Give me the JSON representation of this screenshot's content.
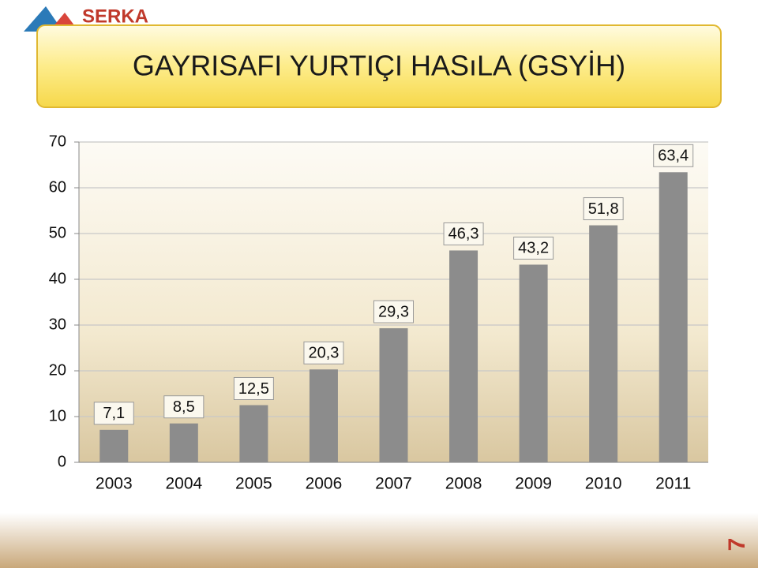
{
  "logo": "SERKA",
  "page_number": "7",
  "chart_data": {
    "type": "bar",
    "title": "GAYRISAFI YURTIÇI HASıLA (GSYİH)",
    "categories": [
      "2003",
      "2004",
      "2005",
      "2006",
      "2007",
      "2008",
      "2009",
      "2010",
      "2011"
    ],
    "values": [
      7.1,
      8.5,
      12.5,
      20.3,
      29.3,
      46.3,
      43.2,
      51.8,
      63.4
    ],
    "value_labels": [
      "7,1",
      "8,5",
      "12,5",
      "20,3",
      "29,3",
      "46,3",
      "43,2",
      "51,8",
      "63,4"
    ],
    "color": "#8c8c8c",
    "ylim": [
      0,
      70
    ],
    "yticks": [
      0,
      10,
      20,
      30,
      40,
      50,
      60,
      70
    ],
    "grid": true
  }
}
